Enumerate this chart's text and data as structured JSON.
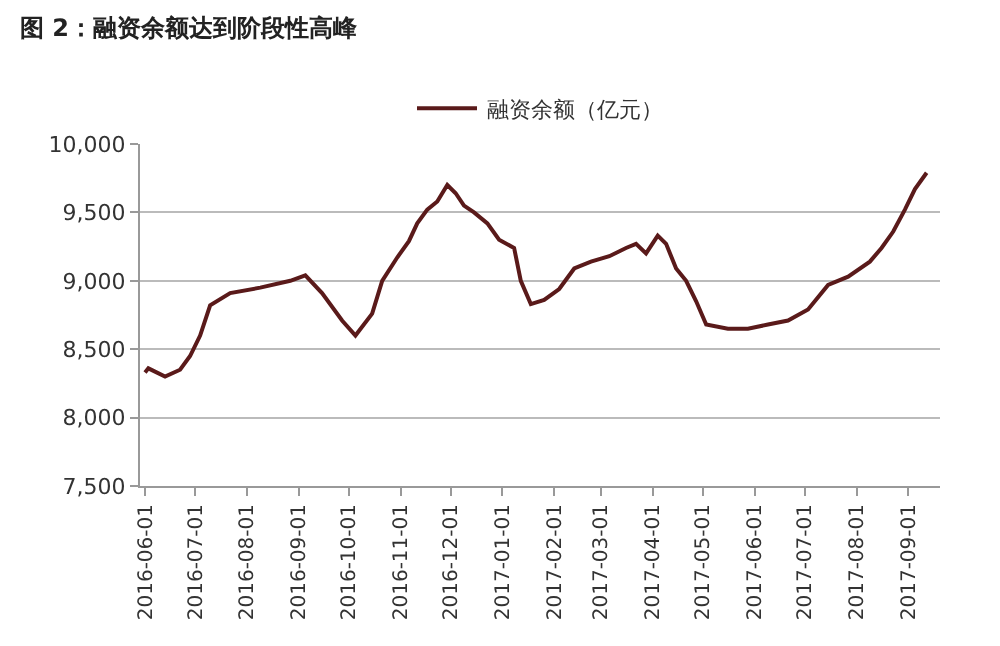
{
  "chart_data": {
    "type": "line",
    "title": "图 2：融资余额达到阶段性高峰",
    "x": [
      "2016-06-01",
      "2016-06-03",
      "2016-06-13",
      "2016-06-22",
      "2016-06-28",
      "2016-07-04",
      "2016-07-10",
      "2016-07-22",
      "2016-08-09",
      "2016-08-27",
      "2016-09-05",
      "2016-09-15",
      "2016-09-27",
      "2016-10-05",
      "2016-10-15",
      "2016-10-21",
      "2016-10-30",
      "2016-11-06",
      "2016-11-11",
      "2016-11-17",
      "2016-11-23",
      "2016-11-29",
      "2016-12-04",
      "2016-12-09",
      "2016-12-15",
      "2016-12-23",
      "2016-12-30",
      "2017-01-08",
      "2017-01-12",
      "2017-01-18",
      "2017-01-26",
      "2017-02-04",
      "2017-02-13",
      "2017-02-23",
      "2017-03-06",
      "2017-03-16",
      "2017-03-22",
      "2017-03-28",
      "2017-04-04",
      "2017-04-09",
      "2017-04-15",
      "2017-04-21",
      "2017-04-27",
      "2017-05-03",
      "2017-05-16",
      "2017-05-28",
      "2017-06-09",
      "2017-06-21",
      "2017-07-03",
      "2017-07-15",
      "2017-07-27",
      "2017-08-09",
      "2017-08-16",
      "2017-08-23",
      "2017-08-30",
      "2017-09-05",
      "2017-09-12"
    ],
    "series": [
      {
        "name": "融资余额（亿元）",
        "color": "#5a1a1a",
        "values": [
          8330,
          8360,
          8300,
          8350,
          8450,
          8600,
          8820,
          8910,
          8950,
          9000,
          9040,
          8910,
          8710,
          8600,
          8760,
          9000,
          9170,
          9290,
          9420,
          9520,
          9580,
          9700,
          9640,
          9550,
          9500,
          9420,
          9300,
          9240,
          9000,
          8830,
          8860,
          8940,
          9090,
          9140,
          9180,
          9240,
          9270,
          9200,
          9330,
          9270,
          9090,
          9000,
          8850,
          8680,
          8650,
          8650,
          8680,
          8710,
          8790,
          8970,
          9030,
          9140,
          9240,
          9360,
          9520,
          9670,
          9790
        ]
      }
    ],
    "xlim": [
      "2016-05-29",
      "2017-09-20"
    ],
    "xticks": [
      {
        "value": "2016-06-01",
        "label": "2016-06-01"
      },
      {
        "value": "2016-07-01",
        "label": "2016-07-01"
      },
      {
        "value": "2016-08-01",
        "label": "2016-08-01"
      },
      {
        "value": "2016-09-01",
        "label": "2016-09-01"
      },
      {
        "value": "2016-10-01",
        "label": "2016-10-01"
      },
      {
        "value": "2016-11-01",
        "label": "2016-11-01"
      },
      {
        "value": "2016-12-01",
        "label": "2016-12-01"
      },
      {
        "value": "2017-01-01",
        "label": "2017-01-01"
      },
      {
        "value": "2017-02-01",
        "label": "2017-02-01"
      },
      {
        "value": "2017-03-01",
        "label": "2017-03-01"
      },
      {
        "value": "2017-04-01",
        "label": "2017-04-01"
      },
      {
        "value": "2017-05-01",
        "label": "2017-05-01"
      },
      {
        "value": "2017-06-01",
        "label": "2017-06-01"
      },
      {
        "value": "2017-07-01",
        "label": "2017-07-01"
      },
      {
        "value": "2017-08-01",
        "label": "2017-08-01"
      },
      {
        "value": "2017-09-01",
        "label": "2017-09-01"
      }
    ],
    "ylim": [
      7500,
      10000
    ],
    "yticks": [
      {
        "value": 7500,
        "label": "7,500"
      },
      {
        "value": 8000,
        "label": "8,000"
      },
      {
        "value": 8500,
        "label": "8,500"
      },
      {
        "value": 9000,
        "label": "9,000"
      },
      {
        "value": 9500,
        "label": "9,500"
      },
      {
        "value": 10000,
        "label": "10,000"
      }
    ],
    "grid": "y",
    "legend": "top",
    "marker": "none",
    "line_style": "solid"
  }
}
